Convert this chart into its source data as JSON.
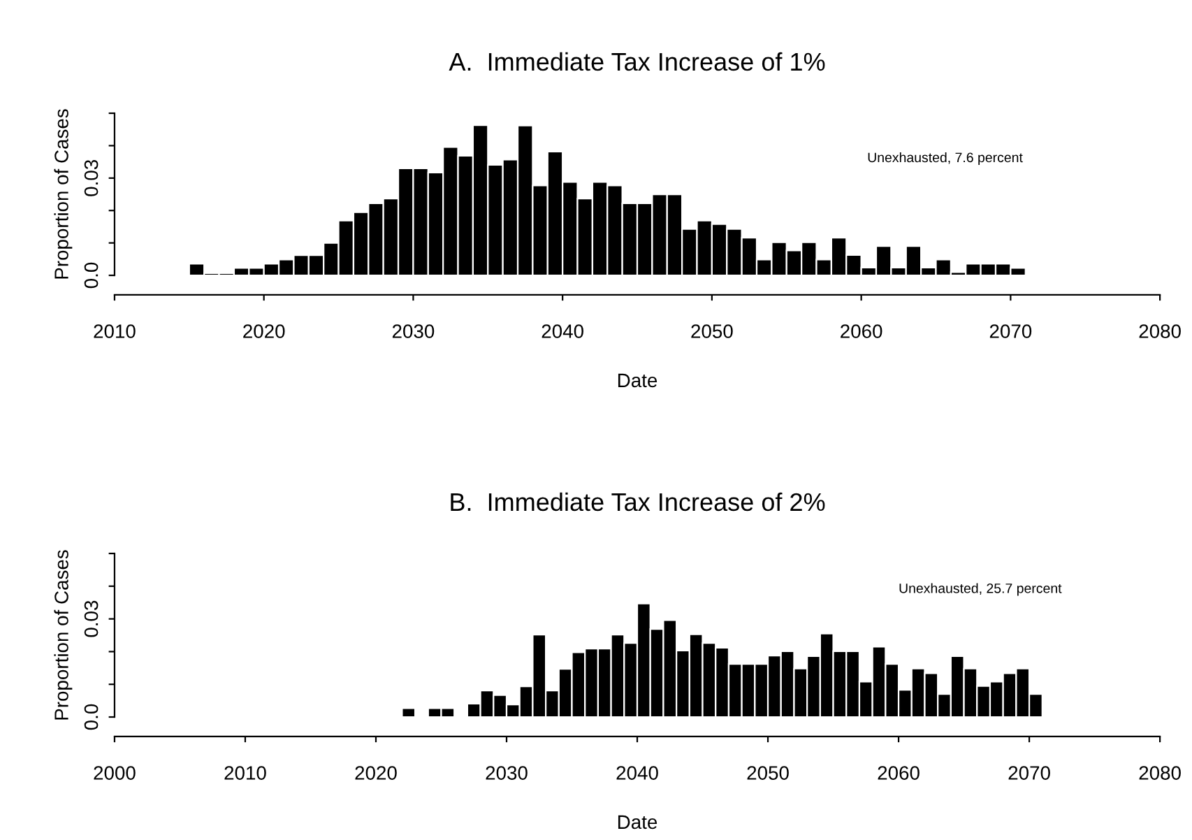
{
  "chart_data": [
    {
      "type": "histogram",
      "title": "A.  Immediate Tax Increase of 1%",
      "xlabel": "Date",
      "ylabel": "Proportion of Cases",
      "color": "#000000",
      "bins": [
        2015,
        2016,
        2017,
        2018,
        2019,
        2020,
        2021,
        2022,
        2023,
        2024,
        2025,
        2026,
        2027,
        2028,
        2029,
        2030,
        2031,
        2032,
        2033,
        2034,
        2035,
        2036,
        2037,
        2038,
        2039,
        2040,
        2041,
        2042,
        2043,
        2044,
        2045,
        2046,
        2047,
        2048,
        2049,
        2050,
        2051,
        2052,
        2053,
        2054,
        2055,
        2056,
        2057,
        2058,
        2059,
        2060,
        2061,
        2062,
        2063,
        2064,
        2065,
        2066,
        2067,
        2068,
        2069,
        2070,
        2071
      ],
      "values": [
        0.0036,
        0.0007,
        0.0007,
        0.0023,
        0.0023,
        0.0036,
        0.0049,
        0.0062,
        0.0062,
        0.01,
        0.0169,
        0.0195,
        0.0222,
        0.0237,
        0.033,
        0.033,
        0.0317,
        0.0396,
        0.0369,
        0.0463,
        0.0341,
        0.0357,
        0.0462,
        0.0277,
        0.0382,
        0.0288,
        0.0237,
        0.0288,
        0.0277,
        0.0222,
        0.0222,
        0.025,
        0.025,
        0.0143,
        0.0169,
        0.0158,
        0.0143,
        0.0116,
        0.0049,
        0.0102,
        0.0077,
        0.0102,
        0.0049,
        0.0116,
        0.0063,
        0.0024,
        0.009,
        0.0024,
        0.009,
        0.0024,
        0.0049,
        0.001,
        0.0036,
        0.0036,
        0.0036,
        0.0023
      ],
      "xlim": [
        2010,
        2080
      ],
      "xticks": [
        2010,
        2020,
        2030,
        2040,
        2050,
        2060,
        2070,
        2080
      ],
      "ylim": [
        0,
        0.05
      ],
      "yticks": [
        {
          "value": 0,
          "label": "0.0"
        },
        {
          "value": 0.01,
          "label": null
        },
        {
          "value": 0.02,
          "label": null
        },
        0.03,
        {
          "value": 0.04,
          "label": null
        },
        {
          "value": 0.05,
          "label": null
        }
      ],
      "annotations": [
        "Unexhausted, 7.6 percent"
      ]
    },
    {
      "type": "histogram",
      "title": "B.  Immediate Tax Increase of 2%",
      "xlabel": "Date",
      "ylabel": "Proportion of Cases",
      "color": "#000000",
      "bins": [
        2022,
        2023,
        2024,
        2025,
        2026,
        2027,
        2028,
        2029,
        2030,
        2031,
        2032,
        2033,
        2034,
        2035,
        2036,
        2037,
        2038,
        2039,
        2040,
        2041,
        2042,
        2043,
        2044,
        2045,
        2046,
        2047,
        2048,
        2049,
        2050,
        2051,
        2052,
        2053,
        2054,
        2055,
        2056,
        2057,
        2058,
        2059,
        2060,
        2061,
        2062,
        2063,
        2064,
        2065,
        2066,
        2067,
        2068,
        2069,
        2070,
        2071
      ],
      "values": [
        0.0027,
        0,
        0.0027,
        0.0027,
        0,
        0.0041,
        0.0081,
        0.0067,
        0.0038,
        0.0094,
        0.0252,
        0.0081,
        0.0147,
        0.0198,
        0.0209,
        0.0209,
        0.0252,
        0.0226,
        0.0347,
        0.0269,
        0.0296,
        0.0203,
        0.0253,
        0.0226,
        0.0212,
        0.0162,
        0.0162,
        0.0162,
        0.0188,
        0.0201,
        0.0148,
        0.0186,
        0.0255,
        0.0201,
        0.0201,
        0.0108,
        0.0215,
        0.0162,
        0.0083,
        0.0148,
        0.0134,
        0.007,
        0.0186,
        0.0148,
        0.0095,
        0.0108,
        0.0134,
        0.0148,
        0.007
      ],
      "xlim": [
        2000,
        2080
      ],
      "xticks": [
        2000,
        2010,
        2020,
        2030,
        2040,
        2050,
        2060,
        2070,
        2080
      ],
      "ylim": [
        0,
        0.05
      ],
      "yticks": [
        {
          "value": 0,
          "label": "0.0"
        },
        {
          "value": 0.01,
          "label": null
        },
        {
          "value": 0.02,
          "label": null
        },
        0.03,
        {
          "value": 0.04,
          "label": null
        },
        {
          "value": 0.05,
          "label": null
        }
      ],
      "annotations": [
        "Unexhausted, 25.7 percent"
      ]
    }
  ]
}
